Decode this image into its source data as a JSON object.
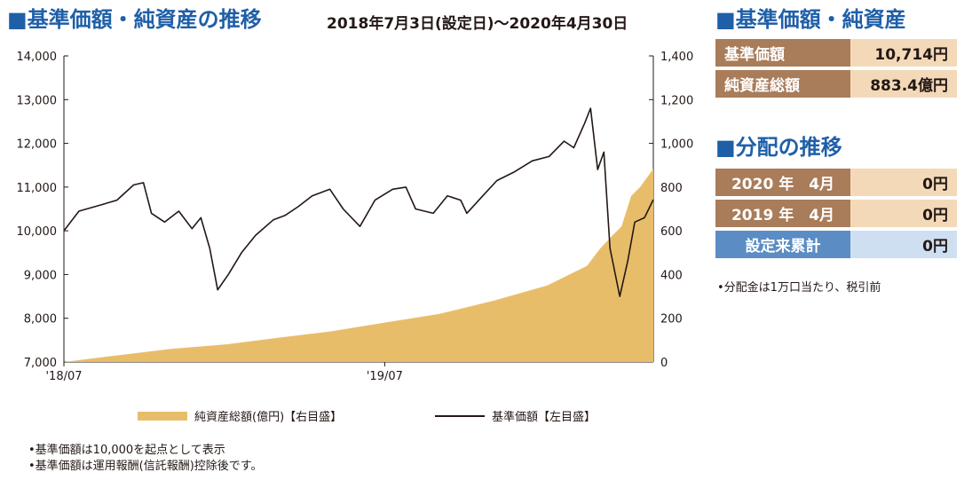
{
  "chart_header": {
    "title": "■基準価額・純資産の推移",
    "period": "2018年7月3日(設定日)～2020年4月30日"
  },
  "chart_data": {
    "type": "line+area",
    "x_start": "2018-07-03",
    "x_end": "2020-04-30",
    "x_tick_labels": [
      "'18/07",
      "'19/07"
    ],
    "y_left": {
      "min": 7000,
      "max": 14000,
      "ticks": [
        "7,000",
        "8,000",
        "9,000",
        "10,000",
        "11,000",
        "12,000",
        "13,000",
        "14,000"
      ]
    },
    "y_right": {
      "min": 0,
      "max": 1400,
      "ticks": [
        "0",
        "200",
        "400",
        "600",
        "800",
        "1,000",
        "1,200",
        "1,400"
      ]
    },
    "series": [
      {
        "name": "基準価額【左目盛】",
        "axis": "left",
        "color": "#231815",
        "points": [
          [
            "2018-07-03",
            10000
          ],
          [
            "2018-07-20",
            10450
          ],
          [
            "2018-08-15",
            10600
          ],
          [
            "2018-09-01",
            10700
          ],
          [
            "2018-09-20",
            11050
          ],
          [
            "2018-10-01",
            11100
          ],
          [
            "2018-10-10",
            10400
          ],
          [
            "2018-10-25",
            10200
          ],
          [
            "2018-11-10",
            10450
          ],
          [
            "2018-11-25",
            10050
          ],
          [
            "2018-12-05",
            10300
          ],
          [
            "2018-12-15",
            9600
          ],
          [
            "2018-12-24",
            8650
          ],
          [
            "2019-01-05",
            9000
          ],
          [
            "2019-01-20",
            9500
          ],
          [
            "2019-02-05",
            9900
          ],
          [
            "2019-02-25",
            10250
          ],
          [
            "2019-03-10",
            10350
          ],
          [
            "2019-03-25",
            10550
          ],
          [
            "2019-04-10",
            10800
          ],
          [
            "2019-04-30",
            10950
          ],
          [
            "2019-05-15",
            10500
          ],
          [
            "2019-06-03",
            10100
          ],
          [
            "2019-06-20",
            10700
          ],
          [
            "2019-07-10",
            10950
          ],
          [
            "2019-07-25",
            11000
          ],
          [
            "2019-08-05",
            10500
          ],
          [
            "2019-08-25",
            10400
          ],
          [
            "2019-09-10",
            10800
          ],
          [
            "2019-09-25",
            10700
          ],
          [
            "2019-10-02",
            10400
          ],
          [
            "2019-10-20",
            10800
          ],
          [
            "2019-11-05",
            11150
          ],
          [
            "2019-11-25",
            11350
          ],
          [
            "2019-12-15",
            11600
          ],
          [
            "2020-01-03",
            11700
          ],
          [
            "2020-01-20",
            12050
          ],
          [
            "2020-01-31",
            11900
          ],
          [
            "2020-02-12",
            12450
          ],
          [
            "2020-02-19",
            12800
          ],
          [
            "2020-02-27",
            11400
          ],
          [
            "2020-03-05",
            11800
          ],
          [
            "2020-03-12",
            9600
          ],
          [
            "2020-03-23",
            8500
          ],
          [
            "2020-04-01",
            9300
          ],
          [
            "2020-04-09",
            10200
          ],
          [
            "2020-04-20",
            10300
          ],
          [
            "2020-04-30",
            10714
          ]
        ]
      },
      {
        "name": "純資産総額(億円)【右目盛】",
        "axis": "right",
        "color": "#e8bd6a",
        "points": [
          [
            "2018-07-03",
            0
          ],
          [
            "2018-09-01",
            30
          ],
          [
            "2018-11-01",
            60
          ],
          [
            "2019-01-01",
            80
          ],
          [
            "2019-03-01",
            110
          ],
          [
            "2019-05-01",
            140
          ],
          [
            "2019-07-01",
            180
          ],
          [
            "2019-09-01",
            220
          ],
          [
            "2019-11-01",
            280
          ],
          [
            "2020-01-01",
            350
          ],
          [
            "2020-02-15",
            440
          ],
          [
            "2020-03-01",
            520
          ],
          [
            "2020-03-15",
            580
          ],
          [
            "2020-03-25",
            620
          ],
          [
            "2020-04-05",
            760
          ],
          [
            "2020-04-15",
            800
          ],
          [
            "2020-04-30",
            883.4
          ]
        ]
      }
    ],
    "legend": {
      "area_label": "純資産総額(億円)【右目盛】",
      "line_label": "基準価額【左目盛】"
    }
  },
  "notes": [
    "•基準価額は10,000を起点として表示",
    "•基準価額は運用報酬(信託報酬)控除後です。"
  ],
  "nav_panel": {
    "title": "■基準価額・純資産",
    "rows": [
      {
        "label": "基準価額",
        "value": "10,714円"
      },
      {
        "label": "純資産総額",
        "value": "883.4億円"
      }
    ]
  },
  "distribution_panel": {
    "title": "■分配の推移",
    "rows": [
      {
        "label": "2020 年　4月",
        "value": "0円"
      },
      {
        "label": "2019 年　4月",
        "value": "0円"
      },
      {
        "label": "設定来累計",
        "value": "0円"
      }
    ],
    "note": "•分配金は1万口当たり、税引前"
  }
}
